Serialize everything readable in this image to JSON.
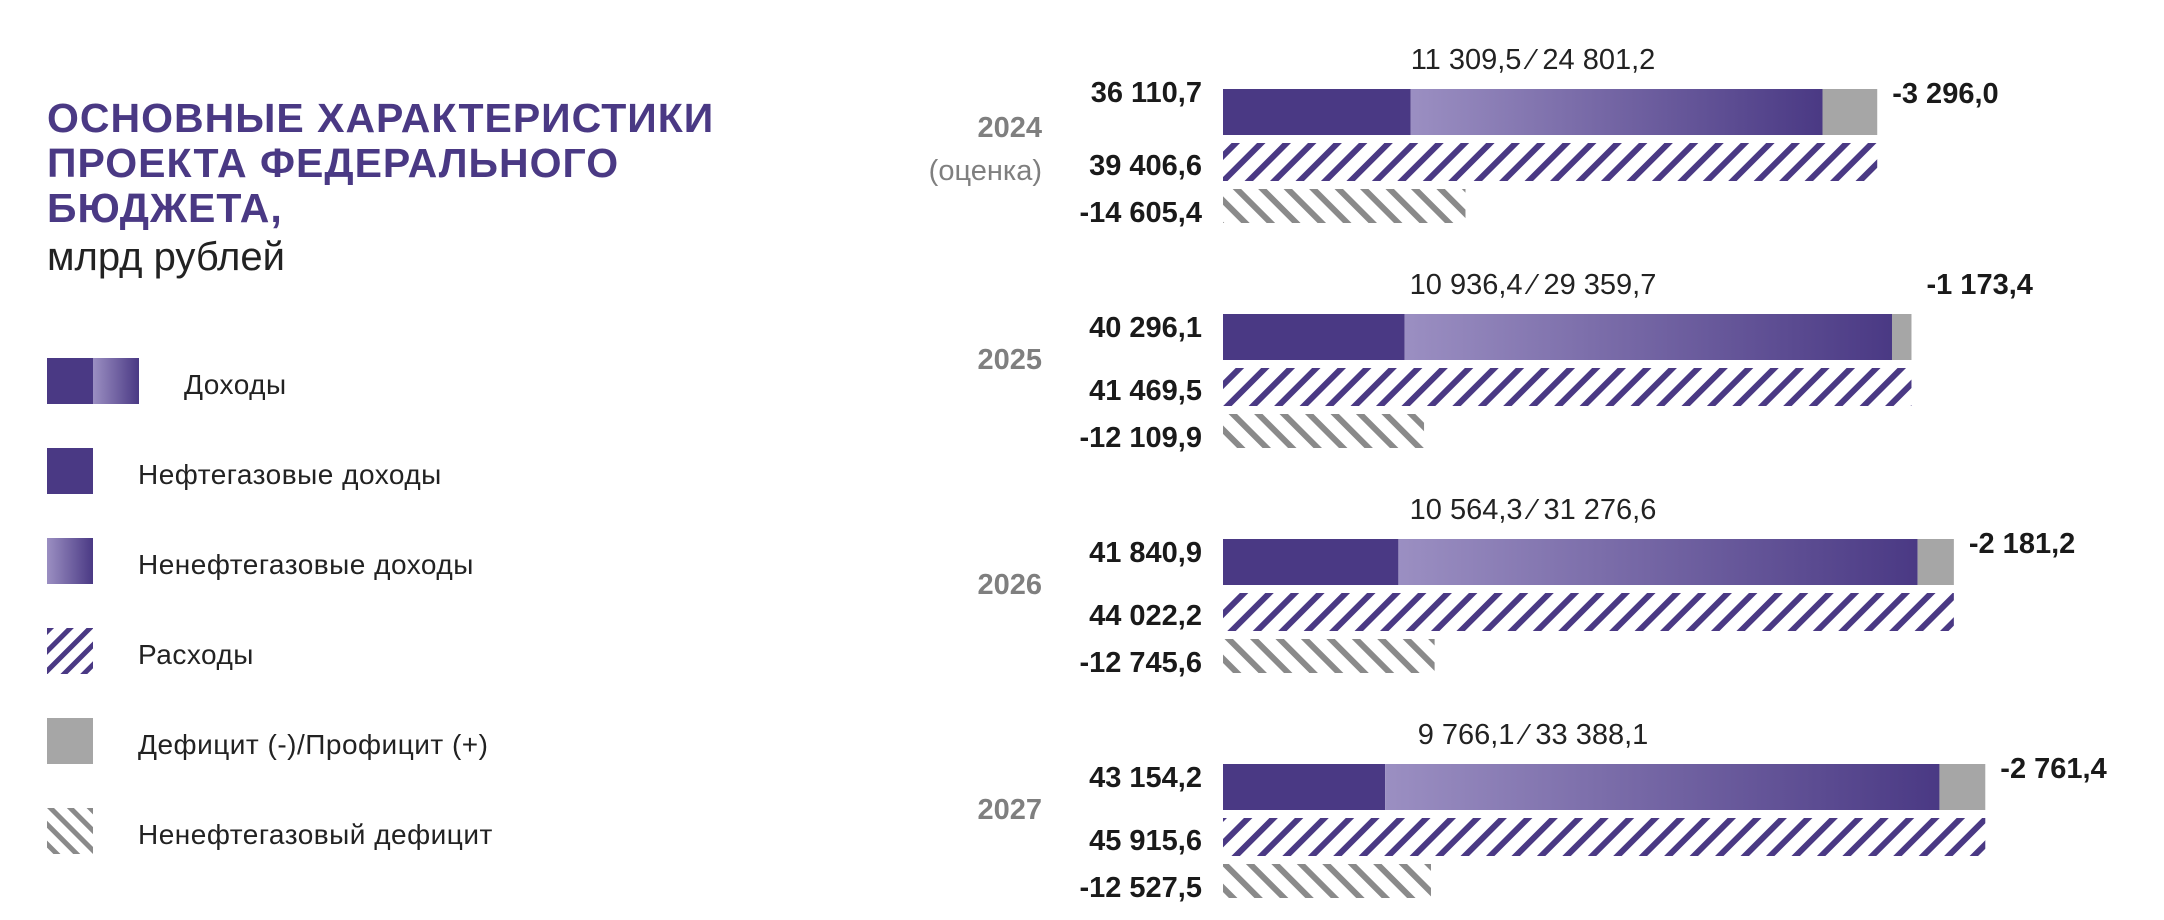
{
  "title": {
    "lines": [
      "ОСНОВНЫЕ ХАРАКТЕРИСТИКИ",
      "ПРОЕКТА ФЕДЕРАЛЬНОГО",
      "БЮДЖЕТА,"
    ],
    "unit": "млрд рублей"
  },
  "legend": [
    {
      "label": "Доходы",
      "icon": "income-split"
    },
    {
      "label": "Нефтегазовые доходы",
      "icon": "solid-purple"
    },
    {
      "label": "Ненефтегазовые доходы",
      "icon": "gradient-purple"
    },
    {
      "label": "Расходы",
      "icon": "hatch-purple"
    },
    {
      "label": "Дефицит (-)/Профицит (+)",
      "icon": "solid-gray"
    },
    {
      "label": "Ненефтегазовый дефицит",
      "icon": "hatch-gray"
    }
  ],
  "colors": {
    "title": "#4a3984",
    "oil_gas": "#4a3984",
    "non_oil_start": "#9b8fc2",
    "non_oil_end": "#4a3984",
    "deficit": "#a6a6a6",
    "expenses_hatch": "#4a3984",
    "non_oil_deficit_hatch": "#8a8a8a",
    "year_label": "#7f7f7f"
  },
  "chart_data": {
    "type": "bar",
    "orientation": "horizontal",
    "unit": "млрд рублей",
    "groups": [
      {
        "year": "2024",
        "year_note": "(оценка)",
        "income": 36110.7,
        "income_label": "36 110,7",
        "oil_gas": 11309.5,
        "non_oil_gas": 24801.2,
        "split_label": "11 309,5 ⁄ 24 801,2",
        "expenses": 39406.6,
        "expenses_label": "39 406,6",
        "deficit": -3296.0,
        "deficit_label": "-3 296,0",
        "non_oil_deficit": -14605.4,
        "non_oil_deficit_label": "-14 605,4"
      },
      {
        "year": "2025",
        "year_note": "",
        "income": 40296.1,
        "income_label": "40 296,1",
        "oil_gas": 10936.4,
        "non_oil_gas": 29359.7,
        "split_label": "10 936,4 ⁄ 29 359,7",
        "expenses": 41469.5,
        "expenses_label": "41 469,5",
        "deficit": -1173.4,
        "deficit_label": "-1 173,4",
        "non_oil_deficit": -12109.9,
        "non_oil_deficit_label": "-12 109,9"
      },
      {
        "year": "2026",
        "year_note": "",
        "income": 41840.9,
        "income_label": "41 840,9",
        "oil_gas": 10564.3,
        "non_oil_gas": 31276.6,
        "split_label": "10 564,3 ⁄ 31 276,6",
        "expenses": 44022.2,
        "expenses_label": "44 022,2",
        "deficit": -2181.2,
        "deficit_label": "-2 181,2",
        "non_oil_deficit": -12745.6,
        "non_oil_deficit_label": "-12 745,6"
      },
      {
        "year": "2027",
        "year_note": "",
        "income": 43154.2,
        "income_label": "43 154,2",
        "oil_gas": 9766.1,
        "non_oil_gas": 33388.1,
        "split_label": "9 766,1 ⁄ 33 388,1",
        "expenses": 45915.6,
        "expenses_label": "45 915,6",
        "deficit": -2761.4,
        "deficit_label": "-2 761,4",
        "non_oil_deficit": -12527.5,
        "non_oil_deficit_label": "-12 527,5"
      }
    ],
    "grid": false,
    "legend_position": "left"
  }
}
